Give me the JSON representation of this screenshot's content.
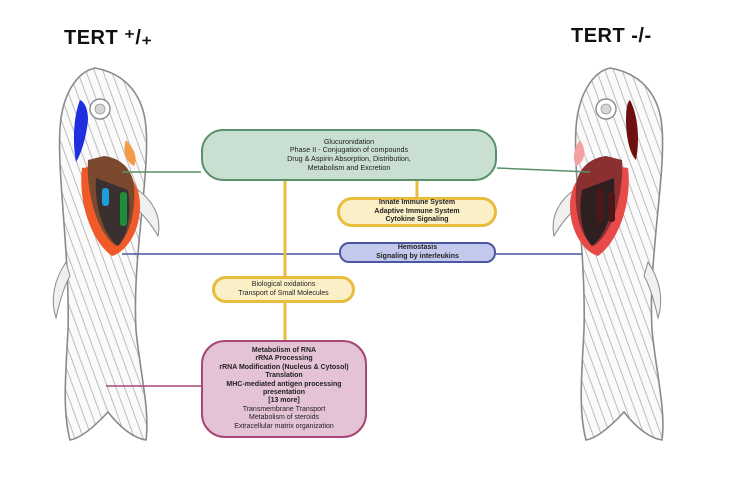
{
  "titles": {
    "left": "TERT ⁺/₊",
    "right": "TERT -/-"
  },
  "boxes": {
    "green": {
      "lines": [
        "Glucuronidation",
        "Phase II - Conjugation of compounds",
        "Drug & Aspirin Absorption, Distribution,",
        "Metabolism and Excretion"
      ],
      "fill": "#c9dfd1",
      "border": "#5a8f6b"
    },
    "immune": {
      "lines": [
        "Innate Immune System",
        "Adaptive Immune System",
        "Cytokine Signaling"
      ],
      "fill": "#fbefc7",
      "border": "#e8bc3c"
    },
    "hemostasis": {
      "lines": [
        "Hemostasis",
        "Signaling by interleukins"
      ],
      "fill": "#c3c9ec",
      "border": "#4b57a3"
    },
    "oxidation": {
      "lines": [
        "Biological oxidations",
        "Transport of Small Molecules"
      ],
      "fill": "#fbefc7",
      "border": "#e8bc3c"
    },
    "metabolism": {
      "bold_lines": [
        "Metabolism of RNA",
        "rRNA Processing",
        "rRNA Modification (Nucleus & Cytosol)",
        "Translation",
        "MHC-mediated antigen processing",
        "presentation",
        "[13 more]"
      ],
      "lines": [
        "Transmembrane Transport",
        "Metabolism of steroids",
        "Extracellular matrix organization"
      ],
      "fill": "#e4c3d6",
      "border": "#a64776"
    }
  },
  "colors": {
    "green_connector": "#5a8f6b",
    "yellow_connector": "#e8bc3c",
    "blue_connector": "#4b57a3",
    "pink_connector": "#a64776",
    "fish_outline": "#8a8a8a",
    "fish_stripe": "#b8b8b8"
  }
}
